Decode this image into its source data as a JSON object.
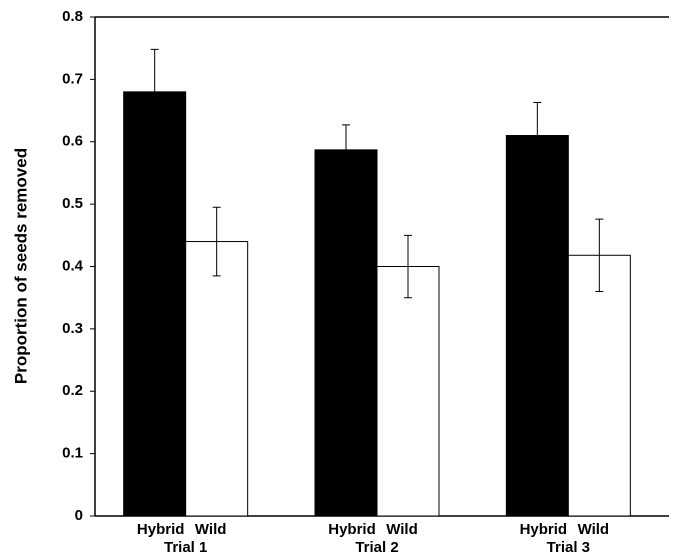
{
  "chart_data": {
    "type": "bar",
    "y_label": "Proportion of seeds removed",
    "categories": [
      "Trial 1",
      "Trial 2",
      "Trial 3"
    ],
    "series": [
      {
        "name": "Hybrid",
        "color": "#000000",
        "values": [
          0.68,
          0.587,
          0.61
        ],
        "errors": [
          0.068,
          0.04,
          0.053
        ]
      },
      {
        "name": "Wild",
        "color": "#ffffff",
        "values": [
          0.44,
          0.4,
          0.418
        ],
        "errors": [
          0.055,
          0.05,
          0.058
        ]
      }
    ],
    "ylim": [
      0,
      0.8
    ],
    "yticks": [
      0,
      0.1,
      0.2,
      0.3,
      0.4,
      0.5,
      0.6,
      0.7,
      0.8
    ]
  }
}
